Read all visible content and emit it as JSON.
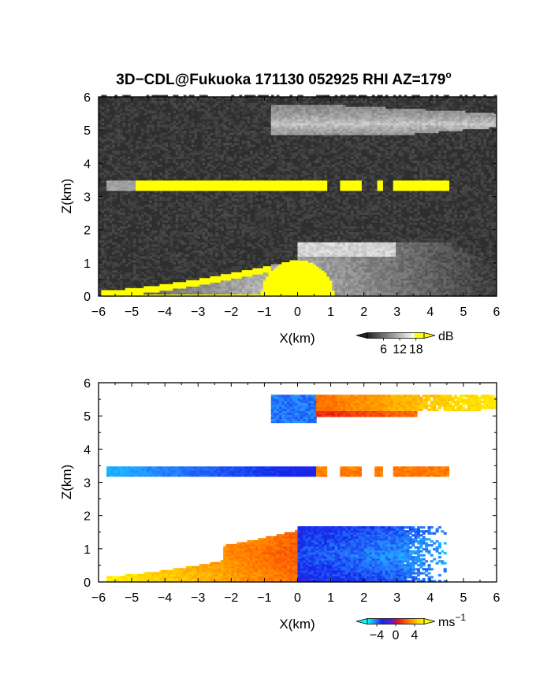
{
  "chart_data": [
    {
      "type": "heatmap",
      "title": "3D−CDL@Fukuoka 171130 052925 RHI AZ=179",
      "title_sup": "o",
      "xlabel": "X(km)",
      "ylabel": "Z(km)",
      "xlim": [
        -6,
        6
      ],
      "ylim": [
        0,
        6
      ],
      "xticks": [
        "−6",
        "−5",
        "−4",
        "−3",
        "−2",
        "−1",
        "0",
        "1",
        "2",
        "3",
        "4",
        "5",
        "6"
      ],
      "yticks": [
        "0",
        "1",
        "2",
        "3",
        "4",
        "5",
        "6"
      ],
      "colorbar": {
        "unit": "dB",
        "ticks": [
          "6",
          "12",
          "18"
        ],
        "range": [
          0,
          21
        ]
      },
      "layers": [
        {
          "feature": "cloud-layer",
          "x": [
            -5.8,
            4.6
          ],
          "z": [
            3.2,
            3.5
          ],
          "value_dB": 18
        },
        {
          "feature": "upper-layer",
          "x": [
            -0.8,
            6.0
          ],
          "z": [
            4.9,
            5.8
          ],
          "value_dB": 9
        },
        {
          "feature": "boundary-layer",
          "x": [
            -5.9,
            6.0
          ],
          "z": [
            0.0,
            1.8
          ],
          "value_dB": 13
        }
      ],
      "colors": {
        "background": "#2e2e2e",
        "saturated": "#ffff00",
        "high": "#ffffff"
      }
    },
    {
      "type": "heatmap",
      "xlabel": "X(km)",
      "ylabel": "Z(km)",
      "xlim": [
        -6,
        6
      ],
      "ylim": [
        0,
        6
      ],
      "xticks": [
        "−6",
        "−5",
        "−4",
        "−3",
        "−2",
        "−1",
        "0",
        "1",
        "2",
        "3",
        "4",
        "5",
        "6"
      ],
      "yticks": [
        "0",
        "1",
        "2",
        "3",
        "4",
        "5",
        "6"
      ],
      "colorbar": {
        "unit": "ms",
        "unit_sup": "−1",
        "ticks": [
          "−4",
          "0",
          "4"
        ],
        "range": [
          -6,
          6
        ]
      },
      "layers": [
        {
          "feature": "cloud-layer-west",
          "x": [
            -5.8,
            -1.0
          ],
          "z": [
            3.2,
            3.5
          ],
          "velocity": -3.5
        },
        {
          "feature": "cloud-layer-east",
          "x": [
            0.5,
            4.6
          ],
          "z": [
            3.2,
            3.5
          ],
          "velocity": 2.5
        },
        {
          "feature": "upper-layer-west",
          "x": [
            -0.8,
            0.5
          ],
          "z": [
            4.8,
            5.6
          ],
          "velocity": -4.5
        },
        {
          "feature": "upper-layer-east",
          "x": [
            0.5,
            6.0
          ],
          "z": [
            4.9,
            5.6
          ],
          "velocity": 3.0
        },
        {
          "feature": "boundary-layer-west",
          "x": [
            -5.8,
            0.0
          ],
          "z": [
            0.0,
            1.8
          ],
          "velocity": 3.5
        },
        {
          "feature": "boundary-layer-east",
          "x": [
            0.0,
            4.5
          ],
          "z": [
            0.0,
            1.7
          ],
          "velocity": -4.0
        }
      ]
    }
  ]
}
